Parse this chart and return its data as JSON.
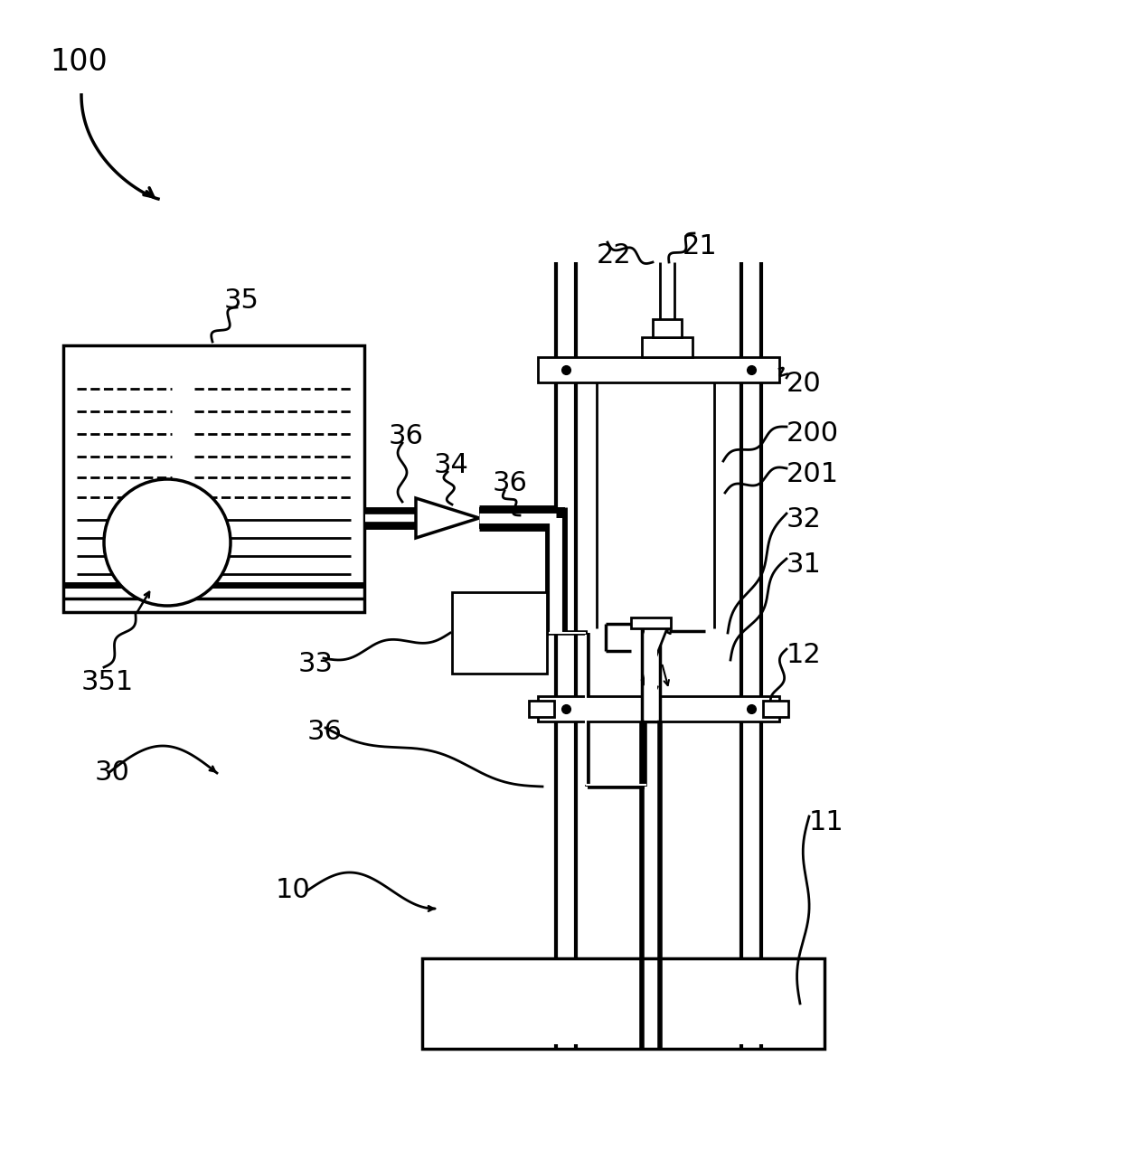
{
  "bg": "#ffffff",
  "lc": "#000000",
  "figw": 12.4,
  "figh": 12.93
}
